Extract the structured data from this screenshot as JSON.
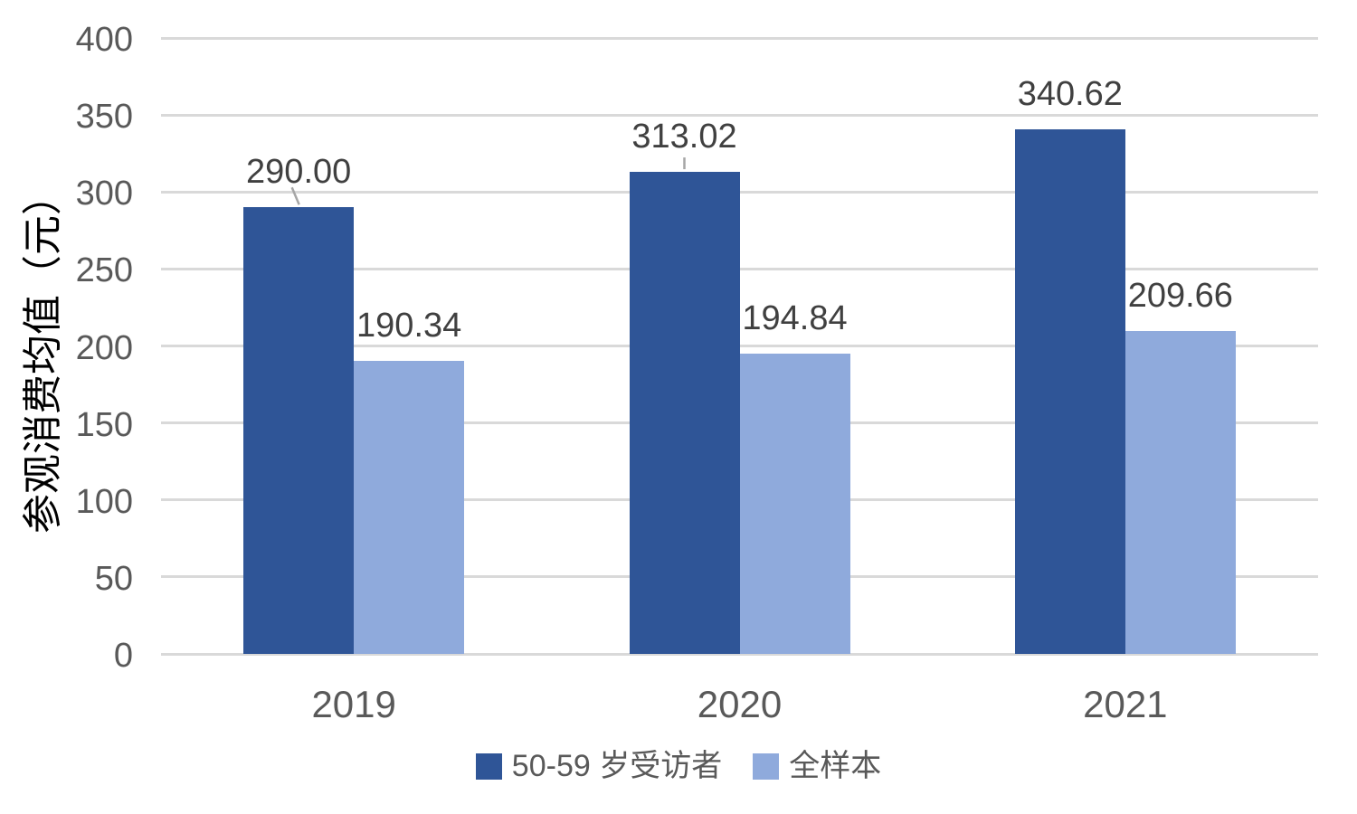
{
  "chart_data": {
    "type": "bar",
    "title": "",
    "ylabel": "参观消费均值（元）",
    "xlabel": "",
    "categories": [
      "2019",
      "2020",
      "2021"
    ],
    "series": [
      {
        "name": "50-59 岁受访者",
        "color": "#2F5597",
        "values": [
          290.0,
          313.02,
          340.62
        ],
        "data_labels": [
          "290.00",
          "313.02",
          "340.62"
        ]
      },
      {
        "name": "全样本",
        "color": "#8FAADC",
        "values": [
          190.34,
          194.84,
          209.66
        ],
        "data_labels": [
          "190.34",
          "194.84",
          "209.66"
        ]
      }
    ],
    "ylim": [
      0,
      400
    ],
    "yticks": [
      0,
      50,
      100,
      150,
      200,
      250,
      300,
      350,
      400
    ],
    "grid": "horizontal",
    "legend_position": "bottom",
    "data_label_leader_lines": [
      {
        "series": 0,
        "category": "2019",
        "style": "diagonal"
      },
      {
        "series": 0,
        "category": "2020",
        "style": "vertical"
      }
    ]
  },
  "styles": {
    "background": "#FFFFFF",
    "gridline_color": "#D9D9D9",
    "axis_text_color": "#595959",
    "data_label_color": "#404040",
    "leader_line_color": "#A6A6A6"
  }
}
